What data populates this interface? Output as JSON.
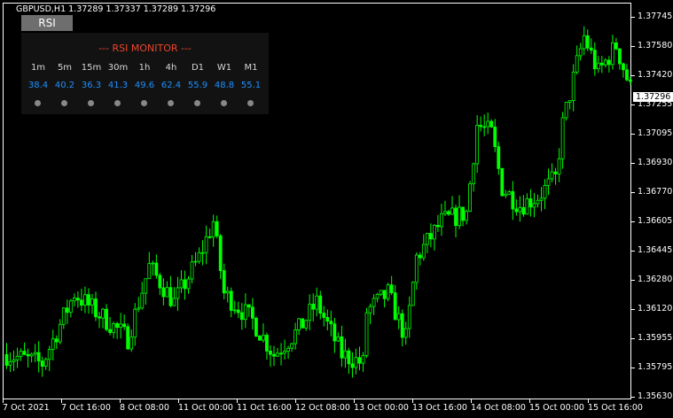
{
  "header": {
    "symbol_info": "GBPUSD,H1  1.37289 1.37337 1.37289 1.37296"
  },
  "rsi_button": {
    "label": "RSI"
  },
  "rsi_monitor": {
    "title": "--- RSI MONITOR ---",
    "timeframes": [
      "1m",
      "5m",
      "15m",
      "30m",
      "1h",
      "4h",
      "D1",
      "W1",
      "M1"
    ],
    "values": [
      "38.4",
      "40.2",
      "36.3",
      "41.3",
      "49.6",
      "62.4",
      "55.9",
      "48.8",
      "55.1"
    ],
    "title_color": "#e8462c",
    "value_color": "#1e90ff",
    "dot_color": "#888888"
  },
  "price_axis": {
    "ticks": [
      "1.37745",
      "1.37580",
      "1.37420",
      "1.37255",
      "1.37095",
      "1.36930",
      "1.36770",
      "1.36605",
      "1.36445",
      "1.36280",
      "1.36120",
      "1.35955",
      "1.35795",
      "1.35630"
    ],
    "current_price": "1.37296"
  },
  "time_axis": {
    "ticks": [
      "7 Oct 2021",
      "7 Oct 16:00",
      "8 Oct 08:00",
      "11 Oct 00:00",
      "11 Oct 16:00",
      "12 Oct 08:00",
      "13 Oct 00:00",
      "13 Oct 16:00",
      "14 Oct 08:00",
      "15 Oct 00:00",
      "15 Oct 16:00"
    ]
  },
  "chart_data": {
    "type": "candlestick",
    "symbol": "GBPUSD",
    "timeframe": "H1",
    "candle_color": "#00ff00",
    "ylim": [
      1.3563,
      1.37745
    ],
    "close_anchors": [
      [
        0,
        1.3587
      ],
      [
        10,
        1.3582
      ],
      [
        19,
        1.3621
      ],
      [
        25,
        1.3611
      ],
      [
        34,
        1.3596
      ],
      [
        40,
        1.3636
      ],
      [
        47,
        1.3616
      ],
      [
        54,
        1.3641
      ],
      [
        58,
        1.3661
      ],
      [
        61,
        1.3621
      ],
      [
        69,
        1.3606
      ],
      [
        75,
        1.3587
      ],
      [
        82,
        1.3601
      ],
      [
        87,
        1.3616
      ],
      [
        94,
        1.3587
      ],
      [
        100,
        1.3582
      ],
      [
        101,
        1.3611
      ],
      [
        107,
        1.3621
      ],
      [
        112,
        1.3596
      ],
      [
        115,
        1.3641
      ],
      [
        122,
        1.3661
      ],
      [
        129,
        1.3666
      ],
      [
        132,
        1.3715
      ],
      [
        136,
        1.371
      ],
      [
        139,
        1.368
      ],
      [
        144,
        1.367
      ],
      [
        149,
        1.3675
      ],
      [
        154,
        1.3685
      ],
      [
        156,
        1.3715
      ],
      [
        160,
        1.3749
      ],
      [
        162,
        1.3764
      ],
      [
        166,
        1.3744
      ],
      [
        171,
        1.3759
      ],
      [
        175,
        1.3735
      ],
      [
        176,
        1.37296
      ]
    ]
  }
}
